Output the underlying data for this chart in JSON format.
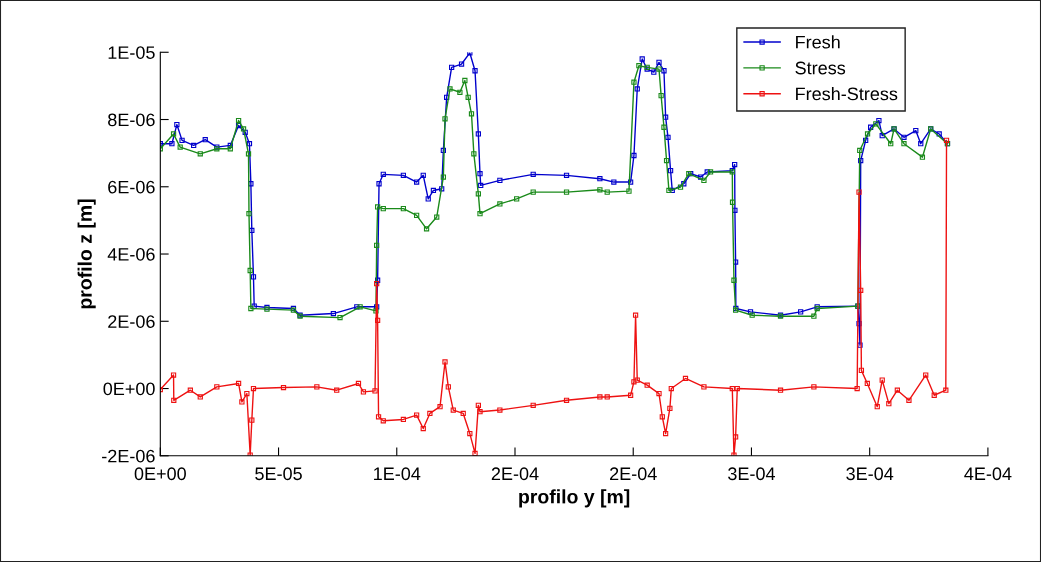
{
  "chart_data": {
    "type": "line",
    "xlabel": "profilo y [m]",
    "ylabel": "profilo z [m]",
    "xlim": [
      0,
      0.00035
    ],
    "ylim": [
      -2e-06,
      1e-05
    ],
    "xticks": [
      {
        "value": 0,
        "label": "0E+00"
      },
      {
        "value": 5e-05,
        "label": "5E-05"
      },
      {
        "value": 0.0001,
        "label": "1E-04"
      },
      {
        "value": 0.00015,
        "label": "2E-04"
      },
      {
        "value": 0.0002,
        "label": "2E-04"
      },
      {
        "value": 0.00025,
        "label": "3E-04"
      },
      {
        "value": 0.0003,
        "label": "3E-04"
      },
      {
        "value": 0.00035,
        "label": "4E-04"
      }
    ],
    "yticks": [
      {
        "value": -2e-06,
        "label": "-2E-06"
      },
      {
        "value": 0,
        "label": "0E+00"
      },
      {
        "value": 2e-06,
        "label": "2E-06"
      },
      {
        "value": 4e-06,
        "label": "4E-06"
      },
      {
        "value": 6e-06,
        "label": "6E-06"
      },
      {
        "value": 8e-06,
        "label": "8E-06"
      },
      {
        "value": 1e-05,
        "label": "1E-05"
      }
    ],
    "legend": "top right",
    "marker": "square",
    "line_style": "solid",
    "series": [
      {
        "name": "Fresh",
        "color": "#0000cc",
        "x": [
          0,
          4.9e-06,
          7e-06,
          9.2e-06,
          1.41e-05,
          1.9e-05,
          2.39e-05,
          2.96e-05,
          3.31e-05,
          3.59e-05,
          3.77e-05,
          3.83e-05,
          3.87e-05,
          3.94e-05,
          3.97e-05,
          4.51e-05,
          5.63e-05,
          5.91e-05,
          7.32e-05,
          8.31e-05,
          9.15e-05,
          9.19e-05,
          9.25e-05,
          9.43e-05,
          0.0001028,
          0.0001084,
          0.0001112,
          0.0001133,
          0.0001155,
          0.000119,
          0.0001197,
          0.0001211,
          0.0001232,
          0.0001274,
          0.0001309,
          0.0001331,
          0.0001345,
          0.0001352,
          0.0001355,
          0.0001436,
          0.0001577,
          0.0001718,
          0.0001859,
          0.0001918,
          0.0001989,
          0.0002003,
          0.0002017,
          0.0002038,
          0.0002059,
          0.0002087,
          0.0002109,
          0.000213,
          0.0002137,
          0.0002147,
          0.0002158,
          0.0002165,
          0.0002214,
          0.0002243,
          0.0002285,
          0.0002313,
          0.0002419,
          0.0002429,
          0.000243,
          0.0002433,
          0.0002434,
          0.0002496,
          0.0002623,
          0.0002708,
          0.0002778,
          0.000295,
          0.0002955,
          0.0002959,
          0.0002962,
          0.0002983,
          0.0003004,
          0.0003039,
          0.0003053,
          0.0003103,
          0.0003145,
          0.0003195,
          0.0003216,
          0.0003258,
          0.0003294,
          0.0003329
        ],
        "values": [
          7.28e-06,
          7.28e-06,
          7.85e-06,
          7.38e-06,
          7.23e-06,
          7.4e-06,
          7.18e-06,
          7.23e-06,
          7.82e-06,
          7.62e-06,
          7.28e-06,
          6.09e-06,
          4.7e-06,
          3.32e-06,
          2.45e-06,
          2.41e-06,
          2.38e-06,
          2.18e-06,
          2.23e-06,
          2.43e-06,
          2.43e-06,
          3.22e-06,
          6.09e-06,
          6.37e-06,
          6.34e-06,
          6.14e-06,
          6.34e-06,
          5.64e-06,
          5.89e-06,
          5.94e-06,
          7.08e-06,
          8.66e-06,
          9.55e-06,
          9.65e-06,
          9.98e-06,
          9.45e-06,
          7.57e-06,
          6.39e-06,
          6.04e-06,
          6.19e-06,
          6.37e-06,
          6.34e-06,
          6.24e-06,
          6.14e-06,
          6.14e-06,
          6.93e-06,
          8.91e-06,
          9.8e-06,
          9.5e-06,
          9.41e-06,
          9.7e-06,
          9.45e-06,
          8.07e-06,
          7.47e-06,
          6.48e-06,
          5.89e-06,
          6.09e-06,
          6.39e-06,
          6.29e-06,
          6.44e-06,
          6.48e-06,
          6.66e-06,
          5.3e-06,
          3.76e-06,
          2.38e-06,
          2.28e-06,
          2.18e-06,
          2.28e-06,
          2.43e-06,
          2.45e-06,
          1.93e-06,
          1.29e-06,
          6.78e-06,
          7.38e-06,
          7.77e-06,
          7.97e-06,
          7.52e-06,
          7.72e-06,
          7.47e-06,
          7.67e-06,
          7.28e-06,
          7.72e-06,
          7.57e-06,
          7.28e-06
        ]
      },
      {
        "name": "Stress",
        "color": "#1a8a1a",
        "x": [
          0,
          5.6e-06,
          8.4e-06,
          1.69e-05,
          2.39e-05,
          2.96e-05,
          3.31e-05,
          3.52e-05,
          3.73e-05,
          3.75e-05,
          3.8e-05,
          3.83e-05,
          4.51e-05,
          5.63e-05,
          5.91e-05,
          7.6e-05,
          8.45e-05,
          9.12e-05,
          9.15e-05,
          9.19e-05,
          9.43e-05,
          0.0001028,
          0.0001084,
          0.0001126,
          0.0001169,
          0.0001197,
          0.0001204,
          0.0001225,
          0.0001267,
          0.0001288,
          0.0001302,
          0.0001316,
          0.0001326,
          0.0001345,
          0.0001352,
          0.0001436,
          0.0001507,
          0.0001577,
          0.0001718,
          0.0001859,
          0.000189,
          0.0001982,
          0.0002003,
          0.0002024,
          0.0002059,
          0.0002109,
          0.0002118,
          0.000213,
          0.0002141,
          0.0002151,
          0.00022,
          0.0002235,
          0.0002299,
          0.0002327,
          0.0002419,
          0.000242,
          0.0002426,
          0.0002433,
          0.0002503,
          0.0002623,
          0.0002764,
          0.0002778,
          0.000295,
          0.0002958,
          0.0002991,
          0.0003026,
          0.0003089,
          0.0003103,
          0.0003145,
          0.0003223,
          0.0003258,
          0.0003329
        ],
        "values": [
          7.13e-06,
          7.57e-06,
          7.18e-06,
          6.98e-06,
          7.13e-06,
          7.13e-06,
          7.97e-06,
          7.72e-06,
          6.98e-06,
          5.2e-06,
          3.51e-06,
          2.38e-06,
          2.36e-06,
          2.33e-06,
          2.15e-06,
          2.11e-06,
          2.43e-06,
          2.31e-06,
          4.26e-06,
          5.4e-06,
          5.35e-06,
          5.35e-06,
          5.15e-06,
          4.75e-06,
          5.1e-06,
          6.29e-06,
          8.02e-06,
          8.91e-06,
          8.81e-06,
          9.16e-06,
          8.66e-06,
          8.17e-06,
          6.98e-06,
          5.79e-06,
          5.2e-06,
          5.49e-06,
          5.64e-06,
          5.84e-06,
          5.84e-06,
          5.91e-06,
          5.84e-06,
          5.87e-06,
          9.11e-06,
          9.6e-06,
          9.55e-06,
          9.5e-06,
          8.71e-06,
          7.77e-06,
          6.78e-06,
          5.89e-06,
          5.99e-06,
          6.39e-06,
          6.19e-06,
          6.44e-06,
          6.44e-06,
          5.54e-06,
          3.22e-06,
          2.33e-06,
          2.18e-06,
          2.15e-06,
          2.15e-06,
          2.38e-06,
          2.45e-06,
          7.08e-06,
          7.57e-06,
          7.87e-06,
          7.28e-06,
          7.72e-06,
          7.28e-06,
          6.88e-06,
          7.72e-06,
          7.28e-06
        ]
      },
      {
        "name": "Fresh-Stress",
        "color": "#ee1111",
        "x": [
          0,
          5.6e-06,
          5.7e-06,
          1.27e-05,
          1.69e-05,
          2.39e-05,
          3.31e-05,
          3.45e-05,
          3.66e-05,
          3.8e-05,
          3.87e-05,
          3.94e-05,
          5.21e-05,
          6.62e-05,
          7.46e-05,
          8.38e-05,
          8.59e-05,
          9.08e-05,
          9.15e-05,
          9.19e-05,
          9.23e-05,
          9.43e-05,
          0.0001028,
          0.0001084,
          0.0001112,
          0.000114,
          0.0001183,
          0.0001204,
          0.0001218,
          0.0001239,
          0.0001281,
          0.0001309,
          0.0001331,
          0.0001345,
          0.0001352,
          0.0001436,
          0.0001577,
          0.0001718,
          0.0001859,
          0.000189,
          0.0001989,
          0.0002003,
          0.000201,
          0.0002017,
          0.0002059,
          0.0002109,
          0.0002123,
          0.0002137,
          0.0002155,
          0.0002161,
          0.0002221,
          0.0002299,
          0.0002419,
          0.0002426,
          0.0002433,
          0.000244,
          0.0002623,
          0.0002764,
          0.0002947,
          0.0002955,
          0.0002962,
          0.0002965,
          0.000299,
          0.0003032,
          0.0003053,
          0.0003081,
          0.0003117,
          0.0003166,
          0.0003237,
          0.0003273,
          0.0003322,
          0.0003325
        ],
        "values": [
          -3e-08,
          4e-07,
          -3.5e-07,
          -5e-08,
          -2.5e-07,
          5e-08,
          1.5e-07,
          -4e-07,
          -1.5e-07,
          -1.98e-06,
          -9.4e-07,
          0,
          3e-08,
          5e-08,
          -5e-08,
          1.5e-07,
          -1e-07,
          -7e-08,
          3.12e-06,
          2.03e-06,
          -8.4e-07,
          -9.6e-07,
          -9.2e-07,
          -7.9e-07,
          -1.19e-06,
          -7.4e-07,
          -5.4e-07,
          7.9e-07,
          5e-08,
          -6.4e-07,
          -7.4e-07,
          -1.34e-06,
          -1.93e-06,
          -5e-07,
          -6.9e-07,
          -6.4e-07,
          -5e-07,
          -3.5e-07,
          -2.5e-07,
          -2.5e-07,
          -2e-07,
          2e-07,
          2.18e-06,
          2.5e-07,
          1e-07,
          -1.5e-07,
          -8.4e-07,
          -1.34e-06,
          -5.9e-07,
          0,
          3e-07,
          5e-08,
          0,
          -1.98e-06,
          -1.44e-06,
          0,
          -5e-08,
          5e-08,
          0,
          5.84e-06,
          2.92e-06,
          5.4e-07,
          1.5e-07,
          -5.4e-07,
          2.5e-07,
          -4.5e-07,
          -5e-08,
          -3.5e-07,
          4e-07,
          -2e-07,
          -5e-08,
          7.38e-06
        ]
      }
    ]
  }
}
